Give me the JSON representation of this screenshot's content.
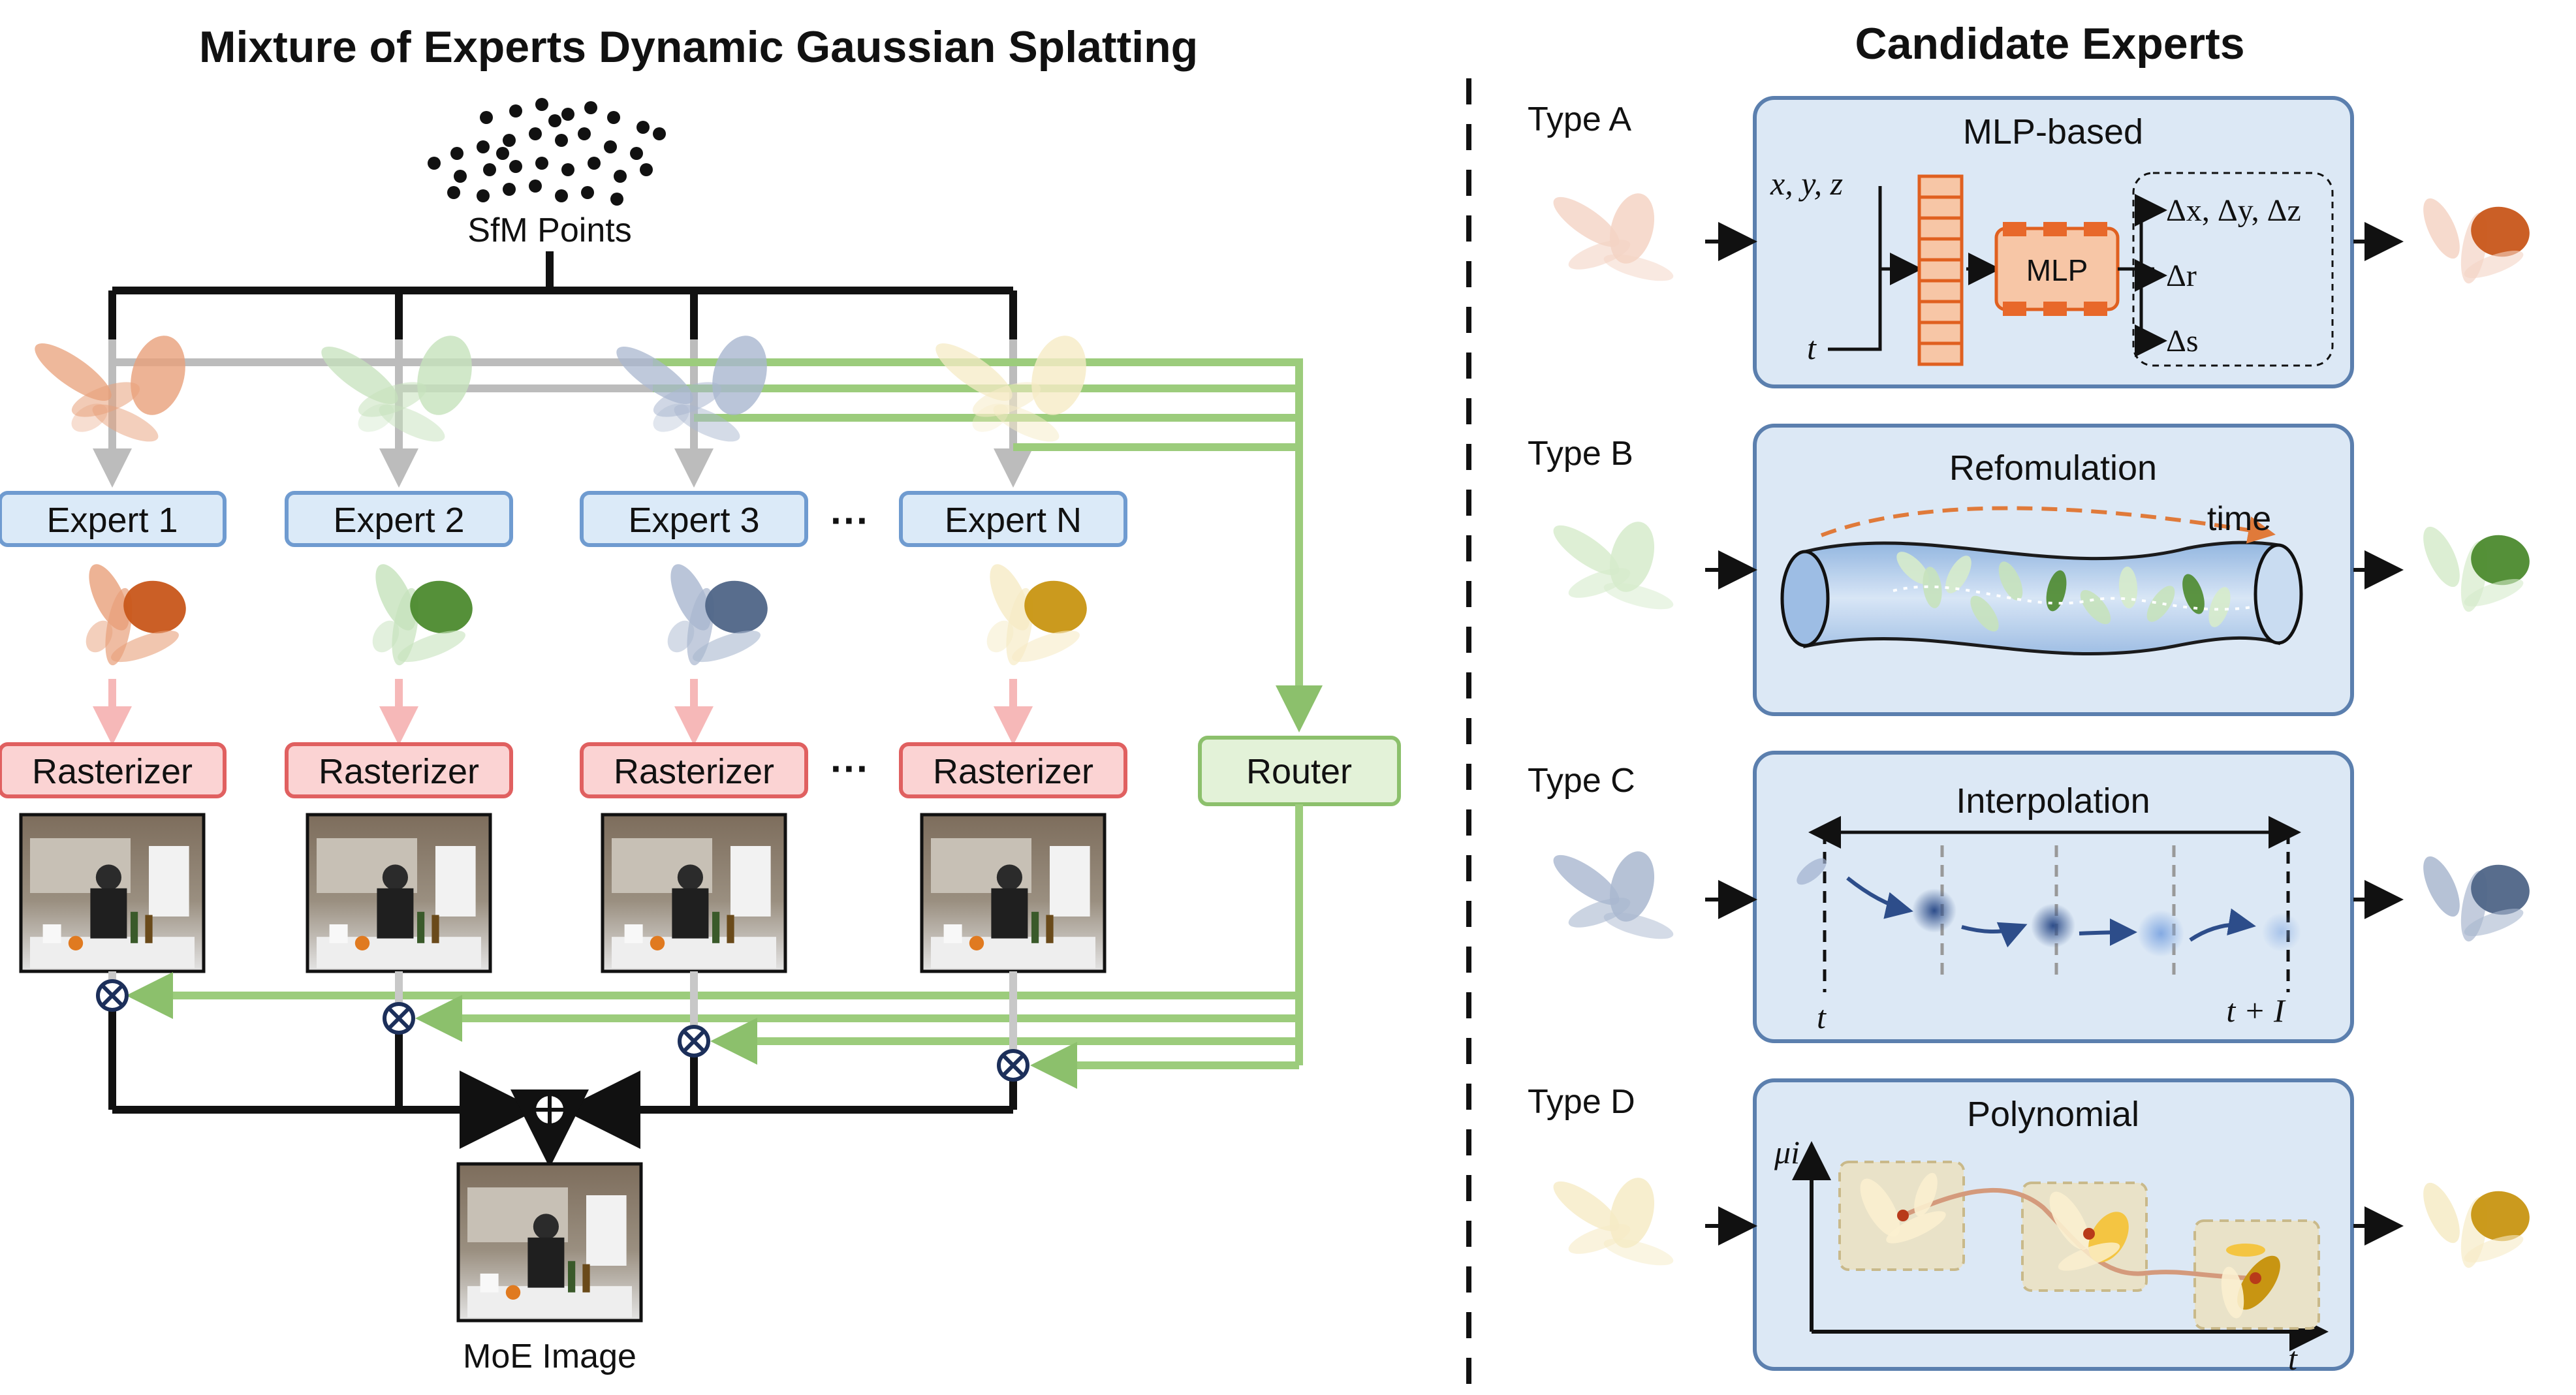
{
  "left": {
    "title": "Mixture of Experts Dynamic Gaussian Splatting",
    "sfm_label": "SfM Points",
    "experts": [
      {
        "label": "Expert 1",
        "color": "#e8a07a",
        "accent": "#c8561a"
      },
      {
        "label": "Expert 2",
        "color": "#c6e2bc",
        "accent": "#4c8a2e"
      },
      {
        "label": "Expert 3",
        "color": "#a9b7cf",
        "accent": "#4f6587"
      },
      {
        "label": "Expert N",
        "color": "#f6ebc6",
        "accent": "#c89512"
      }
    ],
    "ellipsis": "···",
    "rasterizer_label": "Rasterizer",
    "router_label": "Router",
    "output_label": "MoE Image",
    "colors": {
      "expert_fill": "#dbeaf8",
      "expert_stroke": "#6f9bd0",
      "rasterizer_fill": "#fbd3d3",
      "rasterizer_stroke": "#e06060",
      "router_fill": "#e3f2d8",
      "router_stroke": "#8cc06c",
      "green_line": "#9ccc7c",
      "pink_line": "#f6b8b8",
      "gray_line": "#bcbcbc"
    }
  },
  "right": {
    "title": "Candidate Experts",
    "panel_fill": "#dce8f5",
    "panel_stroke": "#5b7fae",
    "types": [
      {
        "label": "Type A",
        "panel": "MLP-based",
        "inputs": [
          "x, y, z",
          "t"
        ],
        "mlp": "MLP",
        "outputs": [
          "Δx, Δy, Δz",
          "Δr",
          "Δs"
        ]
      },
      {
        "label": "Type B",
        "panel": "Refomulation",
        "arrow_label": "time"
      },
      {
        "label": "Type C",
        "panel": "Interpolation",
        "start": "t",
        "end": "t + I"
      },
      {
        "label": "Type D",
        "panel": "Polynomial",
        "y_axis": "μi",
        "x_axis": "t"
      }
    ]
  }
}
